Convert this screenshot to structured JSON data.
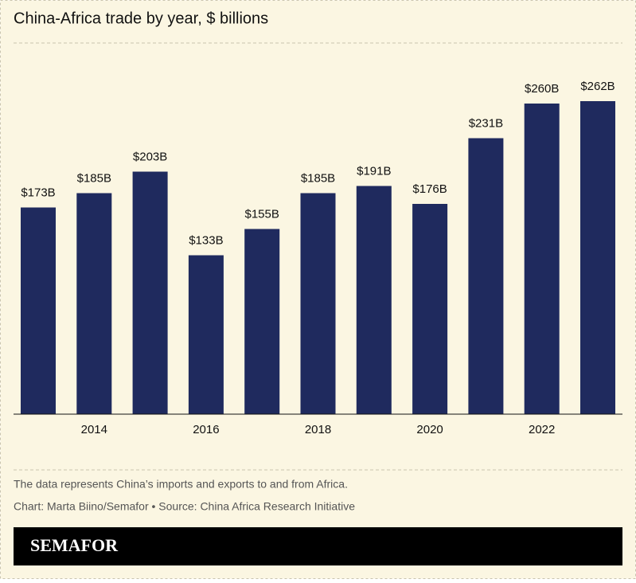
{
  "chart_data": {
    "type": "bar",
    "title": "China-Africa trade by year, $ billions",
    "categories": [
      null,
      "2014",
      null,
      "2016",
      null,
      "2018",
      null,
      "2020",
      null,
      "2022",
      null
    ],
    "values": [
      173,
      185,
      203,
      133,
      155,
      185,
      191,
      176,
      231,
      260,
      262
    ],
    "value_labels": [
      "$173B",
      "$185B",
      "$203B",
      "$133B",
      "$155B",
      "$185B",
      "$191B",
      "$176B",
      "$231B",
      "$260B",
      "$262B"
    ],
    "color": "#1f2a5e",
    "note": "The data represents China’s imports and exports to and from Africa.",
    "credit": "Chart: Marta Biino/Semafor • Source: China Africa Research Initiative"
  },
  "brand": "SEMAFOR"
}
